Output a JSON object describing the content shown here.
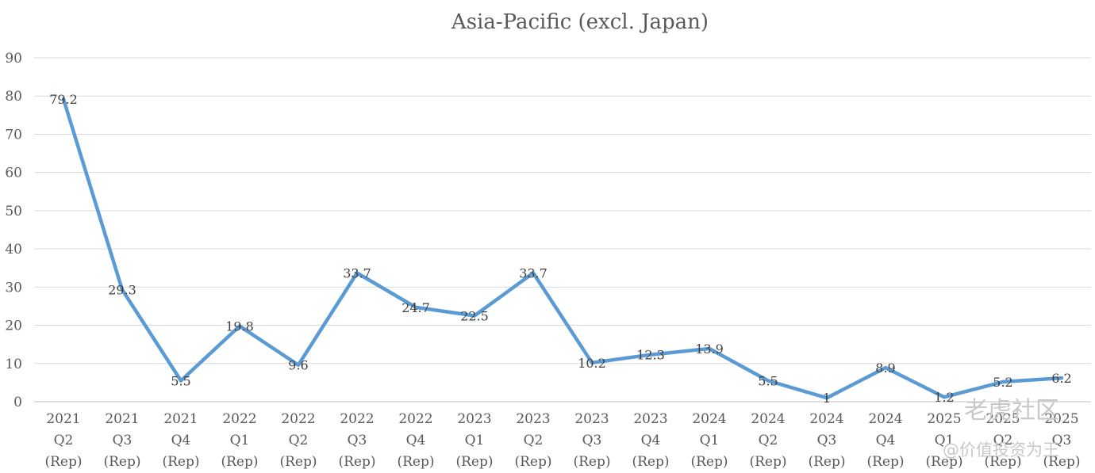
{
  "chart_data": {
    "type": "line",
    "title": "Asia-Pacific (excl. Japan)",
    "xlabel": "",
    "ylabel": "",
    "ylim": [
      0,
      90
    ],
    "yticks": [
      0,
      10,
      20,
      30,
      40,
      50,
      60,
      70,
      80,
      90
    ],
    "grid": true,
    "legend": "none",
    "categories": [
      [
        "2021",
        "Q2",
        "(Rep)"
      ],
      [
        "2021",
        "Q3",
        "(Rep)"
      ],
      [
        "2021",
        "Q4",
        "(Rep)"
      ],
      [
        "2022",
        "Q1",
        "(Rep)"
      ],
      [
        "2022",
        "Q2",
        "(Rep)"
      ],
      [
        "2022",
        "Q3",
        "(Rep)"
      ],
      [
        "2022",
        "Q4",
        "(Rep)"
      ],
      [
        "2023",
        "Q1",
        "(Rep)"
      ],
      [
        "2023",
        "Q2",
        "(Rep)"
      ],
      [
        "2023",
        "Q3",
        "(Rep)"
      ],
      [
        "2023",
        "Q4",
        "(Rep)"
      ],
      [
        "2024",
        "Q1",
        "(Rep)"
      ],
      [
        "2024",
        "Q2",
        "(Rep)"
      ],
      [
        "2024",
        "Q3",
        "(Rep)"
      ],
      [
        "2024",
        "Q4",
        "(Rep)"
      ],
      [
        "2025",
        "Q1",
        "(Rep)"
      ],
      [
        "2025",
        "Q2",
        "(Rep)"
      ],
      [
        "2025",
        "Q3",
        "(Rep)"
      ]
    ],
    "series": [
      {
        "values": [
          79.2,
          29.3,
          5.5,
          19.8,
          9.6,
          33.7,
          24.7,
          22.5,
          33.7,
          10.2,
          12.3,
          13.9,
          5.5,
          1,
          8.9,
          1.2,
          5.2,
          6.2
        ],
        "labels": [
          "79.2",
          "29.3",
          "5.5",
          "19.8",
          "9.6",
          "33.7",
          "24.7",
          "22.5",
          "33.7",
          "10.2",
          "12.3",
          "13.9",
          "5.5",
          "1",
          "8.9",
          "1.2",
          "5.2",
          "6.2"
        ],
        "color": "#5b9bd5"
      }
    ]
  },
  "watermark": {
    "line1": "老虎社区",
    "line2": "@价值投资为王"
  }
}
